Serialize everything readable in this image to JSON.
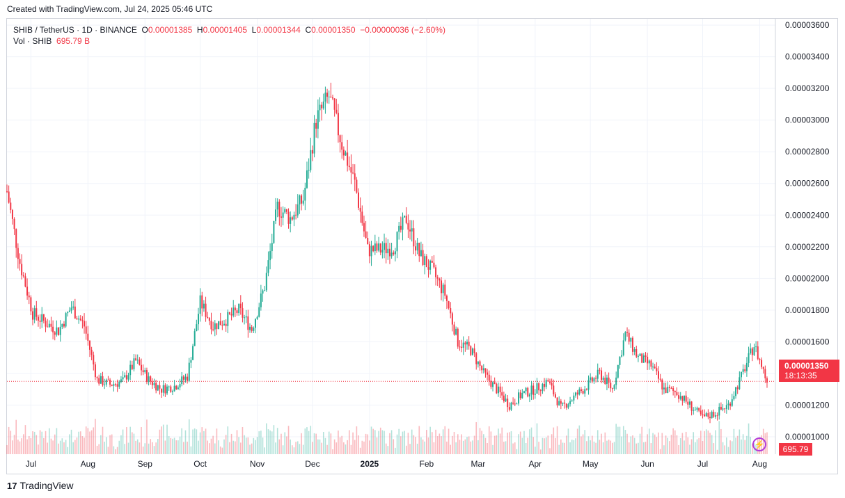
{
  "caption": "Created with TradingView.com, Jul 24, 2025 05:46 UTC",
  "legend": {
    "symbol": "SHIB / TetherUS · 1D · BINANCE",
    "o_label": "O",
    "o": "0.00001385",
    "h_label": "H",
    "h": "0.00001405",
    "l_label": "L",
    "l": "0.00001344",
    "c_label": "C",
    "c": "0.00001350",
    "change": "−0.00000036 (−2.60%)",
    "vol_label": "Vol · SHIB",
    "vol": "695.79 B"
  },
  "last_price_tag": {
    "price": "0.00001350",
    "countdown": "18:13:35"
  },
  "volume_tag": "695.79 B",
  "lightning_icon": "⚡",
  "footer": {
    "logo": "17",
    "brand": "TradingView"
  },
  "colors": {
    "up": "#22ab94",
    "down": "#f23645",
    "grid": "#f0f3fa",
    "axis_text": "#131722"
  },
  "chart_data": {
    "type": "candlestick",
    "title": "SHIB / TetherUS · 1D · BINANCE",
    "ylim": [
      8.9e-06,
      3.64e-05
    ],
    "y_ticks": [
      "0.00001000",
      "0.00001200",
      "0.00001400",
      "0.00001600",
      "0.00001800",
      "0.00002000",
      "0.00002200",
      "0.00002400",
      "0.00002600",
      "0.00002800",
      "0.00003000",
      "0.00003200",
      "0.00003400",
      "0.00003600"
    ],
    "x_ticks": [
      "Jul",
      "Aug",
      "Sep",
      "Oct",
      "Nov",
      "Dec",
      "2025",
      "Feb",
      "Mar",
      "Apr",
      "May",
      "Jun",
      "Jul",
      "Aug"
    ],
    "x_tick_days": [
      13,
      44,
      75,
      105,
      136,
      166,
      197,
      228,
      256,
      287,
      317,
      348,
      378,
      409
    ],
    "days_shown": [
      0,
      413
    ],
    "close_series_weekly": [
      {
        "day": 0,
        "close": 2.55e-05
      },
      {
        "day": 7,
        "close": 2.1e-05
      },
      {
        "day": 14,
        "close": 1.78e-05
      },
      {
        "day": 21,
        "close": 1.72e-05
      },
      {
        "day": 28,
        "close": 1.67e-05
      },
      {
        "day": 35,
        "close": 1.82e-05
      },
      {
        "day": 42,
        "close": 1.7e-05
      },
      {
        "day": 49,
        "close": 1.36e-05
      },
      {
        "day": 56,
        "close": 1.33e-05
      },
      {
        "day": 63,
        "close": 1.35e-05
      },
      {
        "day": 70,
        "close": 1.48e-05
      },
      {
        "day": 77,
        "close": 1.36e-05
      },
      {
        "day": 84,
        "close": 1.3e-05
      },
      {
        "day": 91,
        "close": 1.32e-05
      },
      {
        "day": 98,
        "close": 1.38e-05
      },
      {
        "day": 105,
        "close": 1.85e-05
      },
      {
        "day": 112,
        "close": 1.7e-05
      },
      {
        "day": 119,
        "close": 1.74e-05
      },
      {
        "day": 126,
        "close": 1.8e-05
      },
      {
        "day": 133,
        "close": 1.68e-05
      },
      {
        "day": 140,
        "close": 1.95e-05
      },
      {
        "day": 147,
        "close": 2.45e-05
      },
      {
        "day": 154,
        "close": 2.38e-05
      },
      {
        "day": 161,
        "close": 2.5e-05
      },
      {
        "day": 168,
        "close": 3e-05
      },
      {
        "day": 175,
        "close": 3.15e-05
      },
      {
        "day": 182,
        "close": 2.85e-05
      },
      {
        "day": 189,
        "close": 2.6e-05
      },
      {
        "day": 196,
        "close": 2.18e-05
      },
      {
        "day": 203,
        "close": 2.18e-05
      },
      {
        "day": 210,
        "close": 2.2e-05
      },
      {
        "day": 217,
        "close": 2.38e-05
      },
      {
        "day": 224,
        "close": 2.15e-05
      },
      {
        "day": 231,
        "close": 2.05e-05
      },
      {
        "day": 238,
        "close": 1.9e-05
      },
      {
        "day": 245,
        "close": 1.6e-05
      },
      {
        "day": 252,
        "close": 1.55e-05
      },
      {
        "day": 259,
        "close": 1.4e-05
      },
      {
        "day": 266,
        "close": 1.3e-05
      },
      {
        "day": 273,
        "close": 1.2e-05
      },
      {
        "day": 280,
        "close": 1.27e-05
      },
      {
        "day": 287,
        "close": 1.3e-05
      },
      {
        "day": 294,
        "close": 1.35e-05
      },
      {
        "day": 301,
        "close": 1.18e-05
      },
      {
        "day": 308,
        "close": 1.25e-05
      },
      {
        "day": 315,
        "close": 1.32e-05
      },
      {
        "day": 322,
        "close": 1.4e-05
      },
      {
        "day": 329,
        "close": 1.3e-05
      },
      {
        "day": 336,
        "close": 1.65e-05
      },
      {
        "day": 343,
        "close": 1.5e-05
      },
      {
        "day": 350,
        "close": 1.45e-05
      },
      {
        "day": 357,
        "close": 1.3e-05
      },
      {
        "day": 364,
        "close": 1.28e-05
      },
      {
        "day": 371,
        "close": 1.2e-05
      },
      {
        "day": 378,
        "close": 1.12e-05
      },
      {
        "day": 385,
        "close": 1.15e-05
      },
      {
        "day": 392,
        "close": 1.2e-05
      },
      {
        "day": 399,
        "close": 1.38e-05
      },
      {
        "day": 406,
        "close": 1.58e-05
      },
      {
        "day": 413,
        "close": 1.35e-05
      }
    ]
  }
}
